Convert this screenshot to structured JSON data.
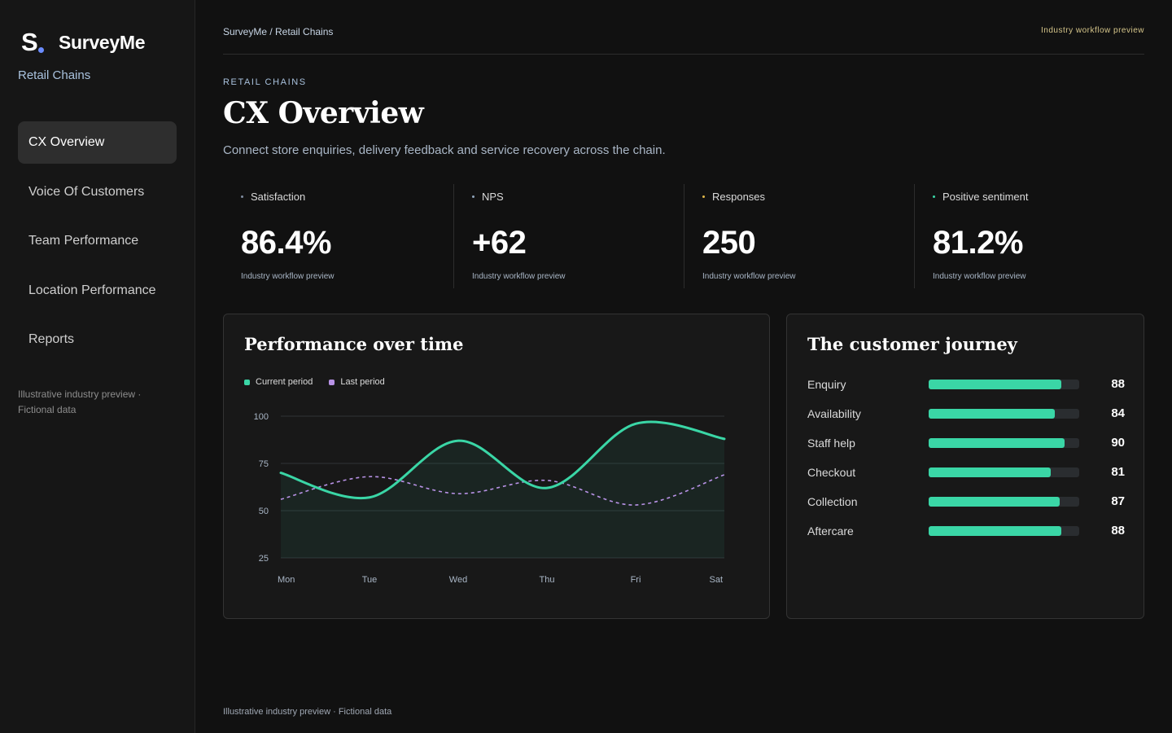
{
  "brand": {
    "name": "SurveyMe",
    "logo_letter": "S"
  },
  "sidebar": {
    "workspace": "Retail Chains",
    "items": [
      {
        "label": "CX Overview",
        "active": true
      },
      {
        "label": "Voice Of Customers",
        "active": false
      },
      {
        "label": "Team Performance",
        "active": false
      },
      {
        "label": "Location Performance",
        "active": false
      },
      {
        "label": "Reports",
        "active": false
      }
    ],
    "note": "Illustrative industry preview · Fictional data"
  },
  "header": {
    "breadcrumb": "SurveyMe / Retail Chains",
    "badge": "Industry workflow preview"
  },
  "page": {
    "eyebrow": "RETAIL CHAINS",
    "title": "CX Overview",
    "description": "Connect store enquiries, delivery feedback and service recovery across the chain."
  },
  "kpis": [
    {
      "label": "Satisfaction",
      "value": "86.4%",
      "note": "Industry workflow preview",
      "dot_color": "#7f8ca0"
    },
    {
      "label": "NPS",
      "value": "+62",
      "note": "Industry workflow preview",
      "dot_color": "#8fa4bb"
    },
    {
      "label": "Responses",
      "value": "250",
      "note": "Industry workflow preview",
      "dot_color": "#e0b84a"
    },
    {
      "label": "Positive sentiment",
      "value": "81.2%",
      "note": "Industry workflow preview",
      "dot_color": "#3ad6a6"
    }
  ],
  "performance": {
    "title": "Performance over time",
    "legend": [
      {
        "name": "Current period",
        "color": "#3ad6a6"
      },
      {
        "name": "Last period",
        "color": "#b892e6"
      }
    ]
  },
  "chart_data": {
    "type": "line",
    "x": [
      "Mon",
      "Tue",
      "Wed",
      "Thu",
      "Fri",
      "Sat"
    ],
    "ylim": [
      25,
      100
    ],
    "yticks": [
      100,
      75,
      50,
      25
    ],
    "grid": true,
    "legend_position": "top-left",
    "series": [
      {
        "name": "Current period",
        "color": "#3ad6a6",
        "style": "solid-area",
        "values": [
          70,
          57,
          87,
          62,
          96,
          88
        ]
      },
      {
        "name": "Last period",
        "color": "#b892e6",
        "style": "dashed",
        "values": [
          56,
          68,
          59,
          66,
          53,
          69
        ]
      }
    ]
  },
  "journey": {
    "title": "The customer journey",
    "max": 100,
    "stages": [
      {
        "label": "Enquiry",
        "value": 88
      },
      {
        "label": "Availability",
        "value": 84
      },
      {
        "label": "Staff help",
        "value": 90
      },
      {
        "label": "Checkout",
        "value": 81
      },
      {
        "label": "Collection",
        "value": 87
      },
      {
        "label": "Aftercare",
        "value": 88
      }
    ]
  },
  "footer": {
    "note": "Illustrative industry preview · Fictional data"
  }
}
